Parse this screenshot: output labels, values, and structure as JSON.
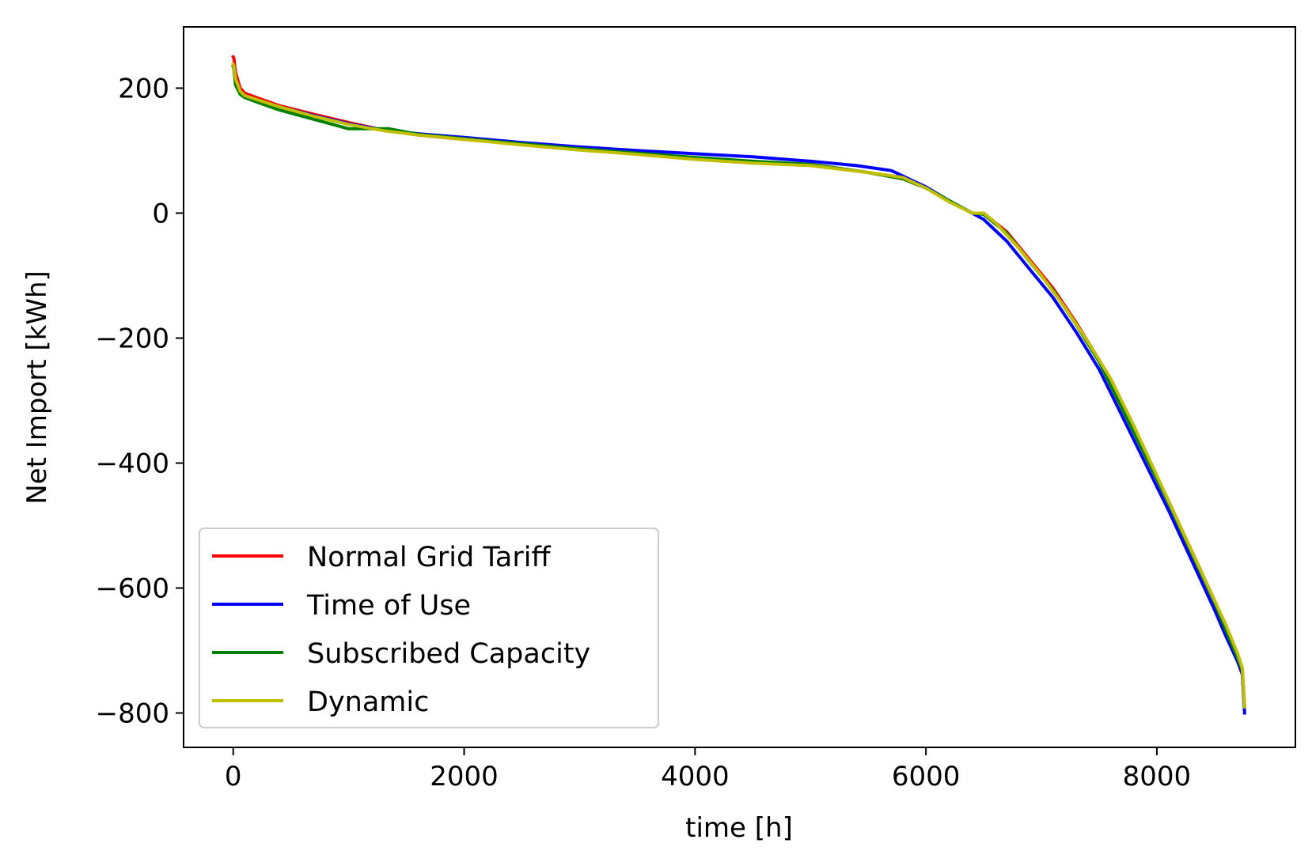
{
  "chart_data": {
    "type": "line",
    "title": "",
    "xlabel": "time [h]",
    "ylabel": "Net Import [kWh]",
    "xlim": [
      -430,
      9200
    ],
    "ylim": [
      -855,
      298
    ],
    "xticks": [
      0,
      2000,
      4000,
      6000,
      8000
    ],
    "xtick_labels": [
      "0",
      "2000",
      "4000",
      "6000",
      "8000"
    ],
    "yticks": [
      200,
      0,
      -200,
      -400,
      -600,
      -800
    ],
    "ytick_labels": [
      "200",
      "0",
      "−200",
      "−400",
      "−600",
      "−800"
    ],
    "grid": false,
    "legend_position": "lower-left",
    "series": [
      {
        "name": "Normal Grid Tariff",
        "color": "#ff0000",
        "x": [
          0,
          5,
          20,
          60,
          100,
          200,
          400,
          700,
          1000,
          1300,
          1600,
          2000,
          2500,
          3000,
          3500,
          4000,
          4500,
          5000,
          5500,
          5800,
          6000,
          6200,
          6400,
          6500,
          6700,
          6900,
          7100,
          7300,
          7500,
          7700,
          7900,
          8100,
          8300,
          8500,
          8600,
          8700,
          8740,
          8760
        ],
        "y": [
          250,
          248,
          225,
          200,
          192,
          185,
          172,
          158,
          145,
          133,
          125,
          118,
          110,
          102,
          95,
          88,
          82,
          78,
          65,
          55,
          40,
          20,
          0,
          0,
          -30,
          -75,
          -120,
          -175,
          -235,
          -310,
          -385,
          -460,
          -540,
          -620,
          -665,
          -710,
          -730,
          -790
        ]
      },
      {
        "name": "Time of Use",
        "color": "#0000ff",
        "x": [
          0,
          5,
          20,
          60,
          100,
          200,
          400,
          700,
          1000,
          1300,
          1600,
          2000,
          2500,
          3000,
          3500,
          4000,
          4500,
          5000,
          5400,
          5700,
          6000,
          6200,
          6400,
          6500,
          6700,
          6900,
          7100,
          7300,
          7500,
          7700,
          7900,
          8100,
          8300,
          8500,
          8600,
          8700,
          8740,
          8760
        ],
        "y": [
          235,
          233,
          210,
          195,
          188,
          182,
          170,
          156,
          143,
          133,
          127,
          121,
          113,
          106,
          100,
          95,
          90,
          83,
          76,
          68,
          42,
          20,
          0,
          -10,
          -45,
          -90,
          -135,
          -190,
          -250,
          -325,
          -400,
          -475,
          -555,
          -635,
          -678,
          -718,
          -738,
          -800
        ]
      },
      {
        "name": "Subscribed Capacity",
        "color": "#008000",
        "x": [
          0,
          5,
          20,
          60,
          100,
          200,
          400,
          700,
          1000,
          1200,
          1350,
          1600,
          2000,
          2500,
          3000,
          3500,
          4000,
          4500,
          5000,
          5500,
          5800,
          6000,
          6200,
          6400,
          6500,
          6700,
          6900,
          7100,
          7300,
          7500,
          7700,
          7900,
          8100,
          8300,
          8500,
          8600,
          8700,
          8740,
          8760
        ],
        "y": [
          235,
          232,
          205,
          190,
          185,
          178,
          165,
          150,
          135,
          135,
          135,
          126,
          119,
          111,
          103,
          96,
          89,
          83,
          78,
          65,
          55,
          40,
          20,
          0,
          -2,
          -32,
          -78,
          -123,
          -178,
          -238,
          -313,
          -388,
          -463,
          -543,
          -623,
          -668,
          -712,
          -732,
          -790
        ]
      },
      {
        "name": "Dynamic",
        "color": "#bfbf00",
        "x": [
          0,
          5,
          20,
          60,
          100,
          200,
          400,
          700,
          1000,
          1300,
          1600,
          2000,
          2500,
          3000,
          3500,
          4000,
          4500,
          5000,
          5500,
          5800,
          6000,
          6200,
          6400,
          6500,
          6600,
          6800,
          7000,
          7200,
          7400,
          7600,
          7800,
          8000,
          8200,
          8400,
          8600,
          8700,
          8740,
          8760
        ],
        "y": [
          238,
          235,
          215,
          195,
          188,
          182,
          170,
          155,
          142,
          132,
          125,
          118,
          109,
          101,
          94,
          86,
          80,
          76,
          65,
          57,
          40,
          18,
          0,
          0,
          -15,
          -55,
          -100,
          -150,
          -205,
          -265,
          -340,
          -420,
          -500,
          -580,
          -660,
          -705,
          -728,
          -790
        ]
      }
    ]
  }
}
